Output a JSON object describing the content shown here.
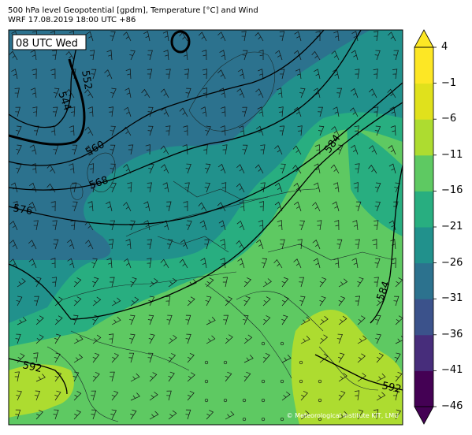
{
  "header": {
    "title_line1": "500 hPa level Geopotential [gpdm], Temperature [°C] and Wind",
    "title_line2": "WRF 17.08.2019 18:00 UTC +86"
  },
  "map": {
    "time_label": "08 UTC Wed",
    "copyright": "© Meteorological Institute KIT, LMU",
    "contour_labels": [
      "552",
      "544",
      "560",
      "568",
      "576",
      "584",
      "584",
      "592",
      "592"
    ]
  },
  "colorbar": {
    "tick_labels": [
      "4",
      "−1",
      "−6",
      "−11",
      "−16",
      "−21",
      "−26",
      "−31",
      "−36",
      "−41",
      "−46"
    ],
    "colors": [
      "#440154",
      "#472d7b",
      "#3b528b",
      "#2c728e",
      "#21918c",
      "#28ae80",
      "#5ec962",
      "#addc30",
      "#e0e11c",
      "#fde725"
    ]
  },
  "colors": {
    "t_warm": "#5ec962",
    "t_mild": "#28ae80",
    "t_cool": "#21918c",
    "t_cold": "#2c728e",
    "t_hot": "#addc30"
  }
}
